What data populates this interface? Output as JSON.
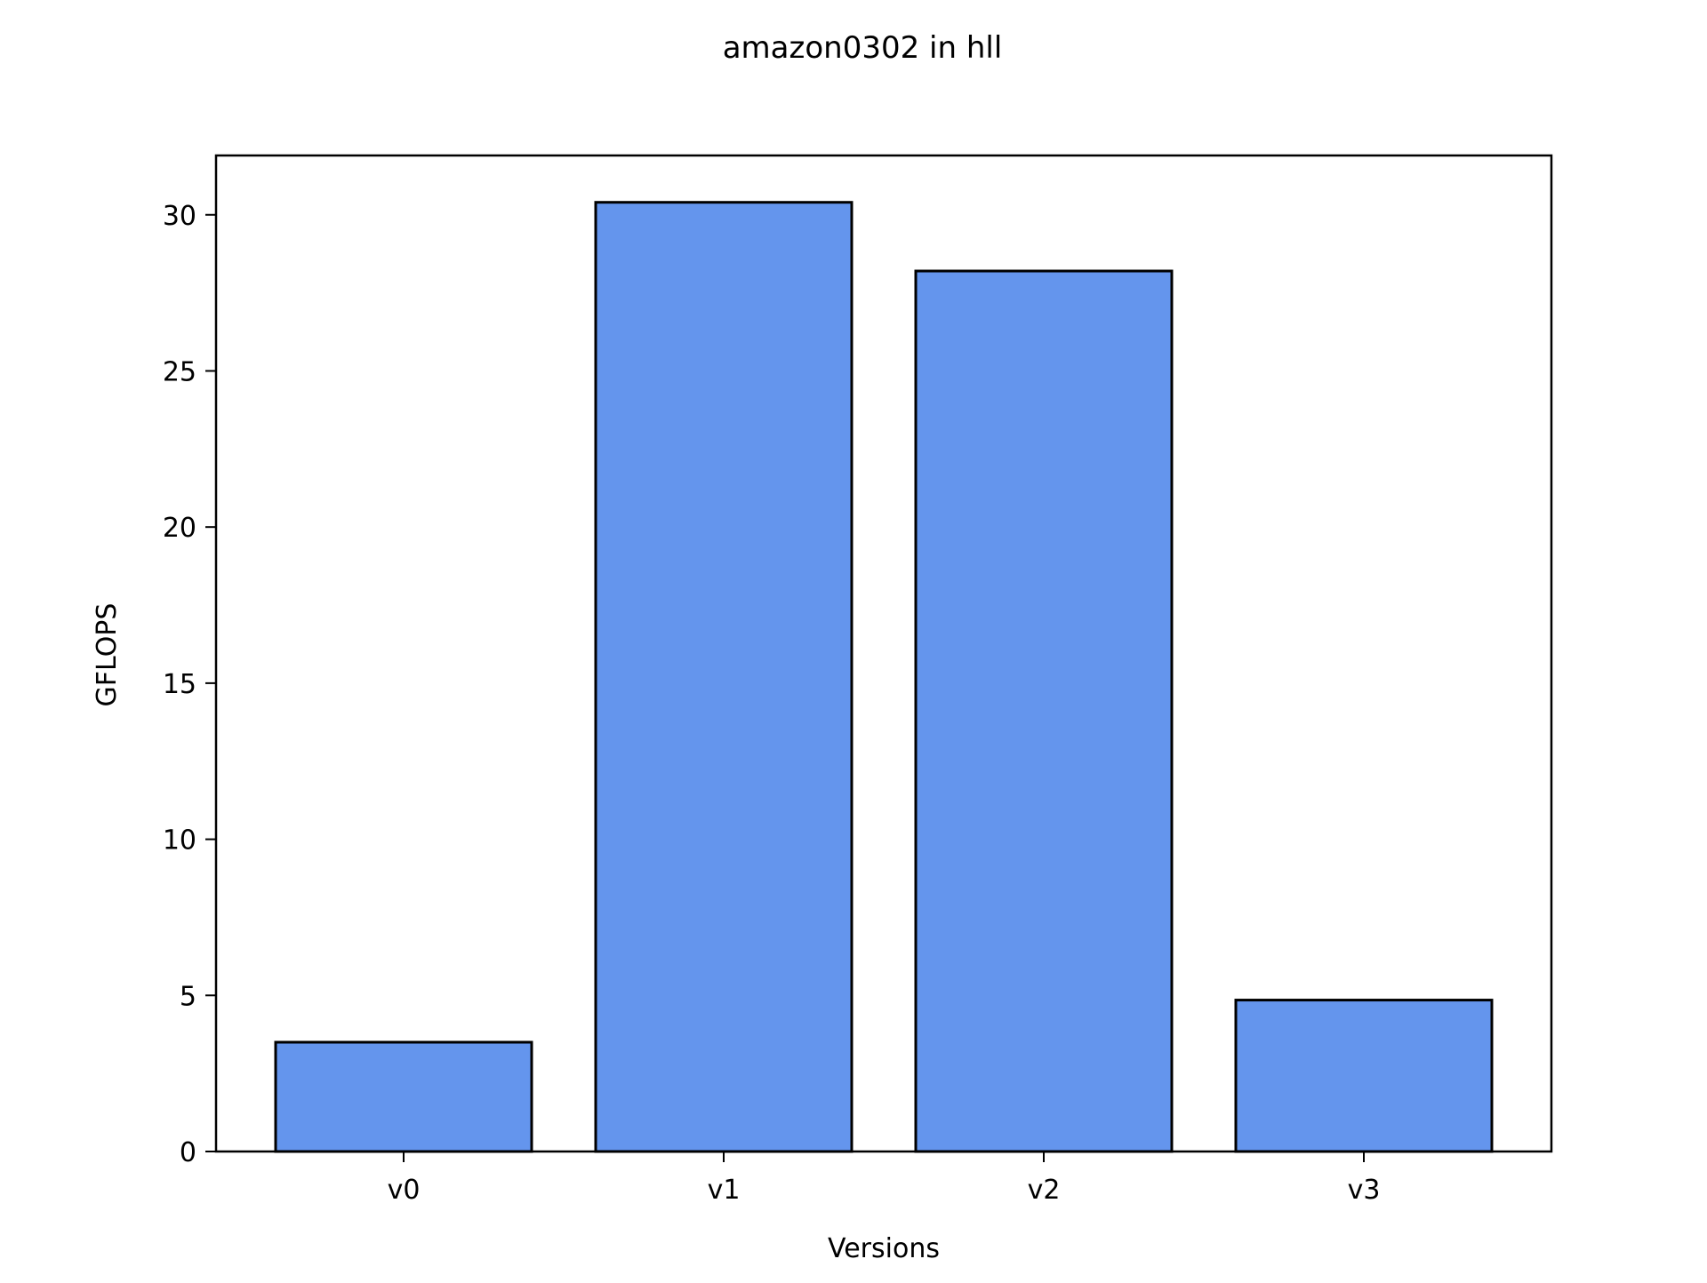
{
  "chart_data": {
    "type": "bar",
    "title": "amazon0302 in hll",
    "xlabel": "Versions",
    "ylabel": "GFLOPS",
    "categories": [
      "v0",
      "v1",
      "v2",
      "v3"
    ],
    "values": [
      3.5,
      30.4,
      28.2,
      4.85
    ],
    "ylim": [
      0,
      31.9
    ],
    "yticks": [
      0,
      5,
      10,
      15,
      20,
      25,
      30
    ],
    "bar_color": "#6495ED",
    "edge_color": "#000000",
    "grid": false,
    "legend": "none"
  }
}
